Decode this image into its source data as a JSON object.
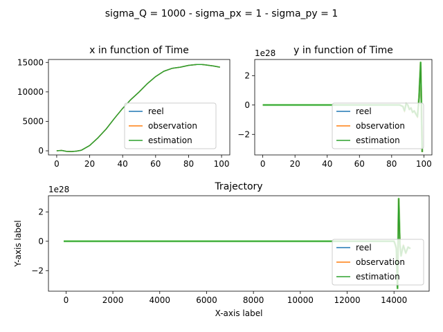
{
  "suptitle": "sigma_Q = 1000 - sigma_px = 1 - sigma_py = 1",
  "legend_labels": [
    "reel",
    "observation",
    "estimation"
  ],
  "colors": {
    "reel": "#1f77b4",
    "observation": "#ff7f0e",
    "estimation": "#2ca02c",
    "estimation_light": "#98df8a"
  },
  "chart_data": [
    {
      "type": "line",
      "title": "x in function of Time",
      "xlabel": "",
      "ylabel": "",
      "xlim": [
        -5,
        105
      ],
      "ylim": [
        -700,
        15500
      ],
      "xticks": [
        0,
        20,
        40,
        60,
        80,
        100
      ],
      "yticks": [
        0,
        5000,
        10000,
        15000
      ],
      "ytick_labels": [
        "0",
        "5000",
        "10000",
        "15000"
      ],
      "legend": "lower right",
      "series": [
        {
          "name": "estimation",
          "x": [
            0,
            3,
            6,
            9,
            12,
            15,
            20,
            25,
            30,
            35,
            40,
            45,
            50,
            55,
            60,
            65,
            70,
            75,
            80,
            85,
            88,
            90,
            95,
            99
          ],
          "y": [
            0,
            60,
            -100,
            -120,
            -60,
            100,
            900,
            2200,
            3700,
            5500,
            7200,
            8700,
            10000,
            11400,
            12600,
            13500,
            14000,
            14200,
            14500,
            14650,
            14650,
            14600,
            14400,
            14200
          ]
        }
      ]
    },
    {
      "type": "line",
      "title": "y in function of Time",
      "xlabel": "",
      "ylabel": "",
      "offset_label": "1e28",
      "xlim": [
        -5,
        105
      ],
      "ylim": [
        -3.4,
        3.1
      ],
      "xticks": [
        0,
        20,
        40,
        60,
        80,
        100
      ],
      "yticks": [
        -2,
        0,
        2
      ],
      "ytick_labels": [
        "−2",
        "0",
        "2"
      ],
      "legend": "lower right",
      "series": [
        {
          "name": "estimation",
          "x": [
            0,
            85,
            87,
            88,
            89,
            90,
            91,
            92,
            93,
            94,
            95,
            96,
            97,
            98,
            99
          ],
          "y": [
            0,
            0,
            -0.1,
            -0.4,
            0.1,
            0,
            -0.3,
            -0.2,
            -0.5,
            -0.4,
            -0.6,
            -0.8,
            0.5,
            2.9,
            -3.2
          ]
        }
      ]
    },
    {
      "type": "line",
      "title": "Trajectory",
      "xlabel": "X-axis label",
      "ylabel": "Y-axis label",
      "offset_label": "1e28",
      "xlim": [
        -750,
        15500
      ],
      "ylim": [
        -3.4,
        3.1
      ],
      "xticks": [
        0,
        2000,
        4000,
        6000,
        8000,
        10000,
        12000,
        14000
      ],
      "yticks": [
        -2,
        0,
        2
      ],
      "ytick_labels": [
        "−2",
        "0",
        "2"
      ],
      "legend": "lower right",
      "series": [
        {
          "name": "estimation",
          "x": [
            -100,
            0,
            14000,
            14050,
            14100,
            14150,
            14200,
            14250,
            14300,
            14350,
            14400,
            14500,
            14600,
            14700
          ],
          "y": [
            0,
            0,
            0,
            -0.2,
            -0.5,
            -3.2,
            2.9,
            -0.2,
            -1.0,
            -0.6,
            -0.3,
            -0.8,
            -0.4,
            -0.5
          ]
        }
      ]
    }
  ]
}
